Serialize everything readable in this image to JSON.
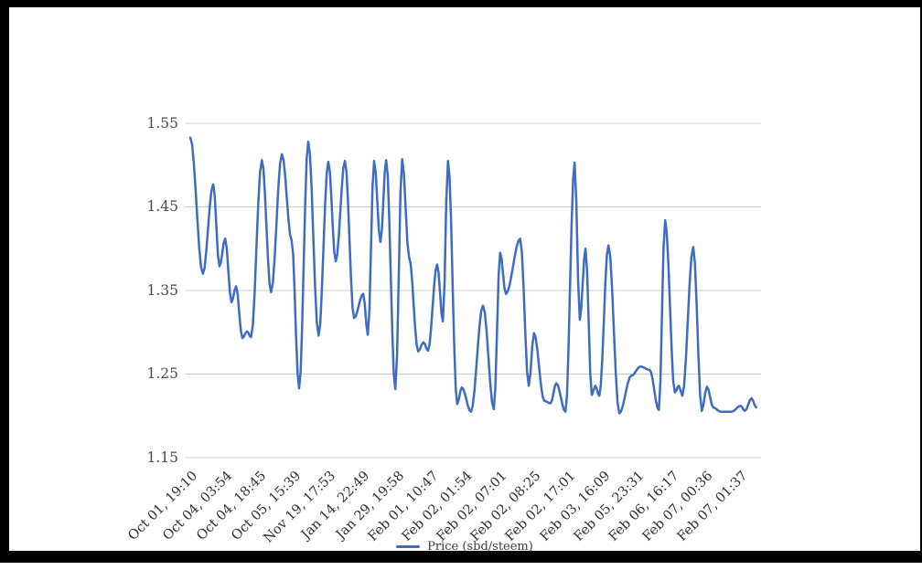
{
  "frame": {
    "border_color": "#000000",
    "background": "#ffffff"
  },
  "chart_data": {
    "type": "line",
    "title": "",
    "grid": true,
    "legend_position": "bottom",
    "grid_color": "#cccccc",
    "y_range": [
      1.15,
      1.55
    ],
    "y_ticks": [
      "1.55",
      "1.45",
      "1.35",
      "1.25",
      "1.15"
    ],
    "x_index_range": [
      0,
      99
    ],
    "x_label_indices": [
      0,
      6,
      12,
      18,
      24,
      30,
      36,
      42,
      48,
      54,
      60,
      66,
      72,
      78,
      84,
      90,
      96
    ],
    "x_labels": [
      "Oct 01, 19:10",
      "Oct 04, 03:54",
      "Oct 04, 18:45",
      "Oct 05, 15:39",
      "Nov 19, 17:53",
      "Jan 14, 22:49",
      "Jan 29, 19:58",
      "Feb 01, 10:47",
      "Feb 02, 01:54",
      "Feb 02, 07:01",
      "Feb 02, 08:25",
      "Feb 02, 17:01",
      "Feb 03, 16:09",
      "Feb 05, 23:31",
      "Feb 06, 16:17",
      "Feb 07, 00:36",
      "Feb 07, 01:37"
    ],
    "series": [
      {
        "name": "Price (sbd/steem)",
        "color": "#3d6cc2",
        "points": [
          [
            0,
            1.533
          ],
          [
            2.2,
            1.37
          ],
          [
            4,
            1.477
          ],
          [
            5.1,
            1.379
          ],
          [
            6.1,
            1.412
          ],
          [
            7.2,
            1.336
          ],
          [
            8,
            1.355
          ],
          [
            9.1,
            1.293
          ],
          [
            9.9,
            1.301
          ],
          [
            10.6,
            1.294
          ],
          [
            12.5,
            1.506
          ],
          [
            14.1,
            1.348
          ],
          [
            16,
            1.513
          ],
          [
            17.7,
            1.41
          ],
          [
            19,
            1.233
          ],
          [
            20.6,
            1.528
          ],
          [
            22.4,
            1.296
          ],
          [
            24.1,
            1.504
          ],
          [
            25.4,
            1.385
          ],
          [
            27,
            1.505
          ],
          [
            28.6,
            1.317
          ],
          [
            30.2,
            1.346
          ],
          [
            31,
            1.297
          ],
          [
            32.1,
            1.505
          ],
          [
            33.2,
            1.408
          ],
          [
            34.2,
            1.506
          ],
          [
            35.8,
            1.232
          ],
          [
            37,
            1.507
          ],
          [
            38.2,
            1.39
          ],
          [
            39.8,
            1.277
          ],
          [
            40.7,
            1.288
          ],
          [
            41.5,
            1.278
          ],
          [
            43.1,
            1.381
          ],
          [
            44.1,
            1.313
          ],
          [
            45,
            1.505
          ],
          [
            46.6,
            1.214
          ],
          [
            47.4,
            1.234
          ],
          [
            49,
            1.205
          ],
          [
            51.1,
            1.332
          ],
          [
            53,
            1.208
          ],
          [
            54.1,
            1.395
          ],
          [
            55.1,
            1.346
          ],
          [
            57.6,
            1.412
          ],
          [
            59.1,
            1.236
          ],
          [
            60,
            1.299
          ],
          [
            61.8,
            1.218
          ],
          [
            62.9,
            1.215
          ],
          [
            63.9,
            1.239
          ],
          [
            65.5,
            1.205
          ],
          [
            67.1,
            1.503
          ],
          [
            68,
            1.315
          ],
          [
            69,
            1.4
          ],
          [
            70.1,
            1.225
          ],
          [
            70.7,
            1.236
          ],
          [
            71.4,
            1.224
          ],
          [
            73,
            1.404
          ],
          [
            74.9,
            1.203
          ],
          [
            77,
            1.248
          ],
          [
            78.6,
            1.259
          ],
          [
            80.2,
            1.255
          ],
          [
            81.8,
            1.207
          ],
          [
            82.9,
            1.434
          ],
          [
            84.6,
            1.228
          ],
          [
            85.3,
            1.236
          ],
          [
            85.9,
            1.224
          ],
          [
            87.8,
            1.402
          ],
          [
            89.3,
            1.206
          ],
          [
            90.2,
            1.235
          ],
          [
            91.3,
            1.21
          ],
          [
            92.6,
            1.205
          ],
          [
            94.5,
            1.205
          ],
          [
            96.1,
            1.212
          ],
          [
            96.8,
            1.206
          ],
          [
            98,
            1.221
          ],
          [
            98.8,
            1.21
          ]
        ]
      }
    ]
  }
}
